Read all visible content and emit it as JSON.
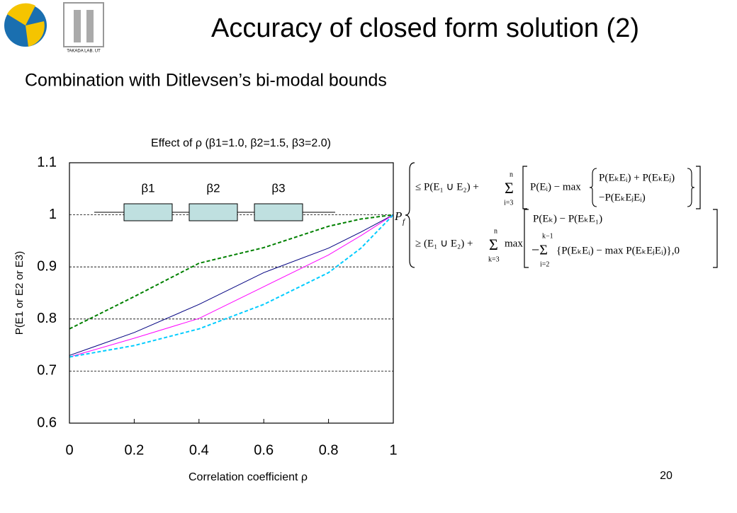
{
  "header": {
    "title": "Accuracy of closed form solution (2)",
    "subtitle": "Combination with Ditlevsen’s bi-modal bounds",
    "logo_text": "TAKADA LAB. UT"
  },
  "chart_data": {
    "type": "line",
    "title": "Effect of ρ (β1=1.0, β2=1.5, β3=2.0)",
    "x_label": "Correlation coefficient ρ",
    "y_label": "P(E1 or E2 or E3)",
    "x": [
      0,
      0.2,
      0.4,
      0.6,
      0.8,
      0.9,
      1
    ],
    "series": [
      {
        "color": "#000080",
        "dashed": false,
        "values": [
          0.73,
          0.774,
          0.828,
          0.889,
          0.936,
          0.967,
          1.0
        ]
      },
      {
        "color": "#ff00ff",
        "dashed": false,
        "values": [
          0.727,
          0.763,
          0.801,
          0.862,
          0.923,
          0.96,
          1.0
        ]
      },
      {
        "color": "#00ccff",
        "dashed": true,
        "values": [
          0.727,
          0.749,
          0.781,
          0.828,
          0.889,
          0.936,
          1.0
        ]
      },
      {
        "color": "#008000",
        "dashed": true,
        "values": [
          0.781,
          0.843,
          0.907,
          0.937,
          0.978,
          0.992,
          1.0
        ]
      }
    ],
    "xlim": [
      0,
      1
    ],
    "xticks": [
      0,
      0.2,
      0.4,
      0.6,
      0.8,
      1
    ],
    "ylim": [
      0.6,
      1.1
    ],
    "yticks": [
      0.6,
      0.7,
      0.8,
      0.9,
      1,
      1.1
    ],
    "grid": true
  },
  "diagram": {
    "labels": [
      "β1",
      "β2",
      "β3"
    ]
  },
  "formula": {
    "lhs": "P",
    "lhs_sub": "f",
    "u0": "≤ P(E₁ ∪ E₂) +",
    "u_sum": "Σ",
    "u_top": "n",
    "u_bot": "i=3",
    "u1": "P(Eᵢ) − max",
    "u2": "P(EₖEᵢ) + P(EₖEⱼ)",
    "u3": "−P(EₖEⱼEᵢ)",
    "l0": "≥ (E₁ ∪ E₂) +",
    "l_sum": "Σ",
    "l_top": "n",
    "l_bot": "k=3",
    "l1": "max",
    "l2": "P(Eₖ) − P(EₖE₁)",
    "l3": "−Σ",
    "l3_top": "k−1",
    "l3_bot": "i=2",
    "l4": "{P(EₖEᵢ) − max P(EₖEⱼEᵢ)},0"
  },
  "page_number": "20"
}
